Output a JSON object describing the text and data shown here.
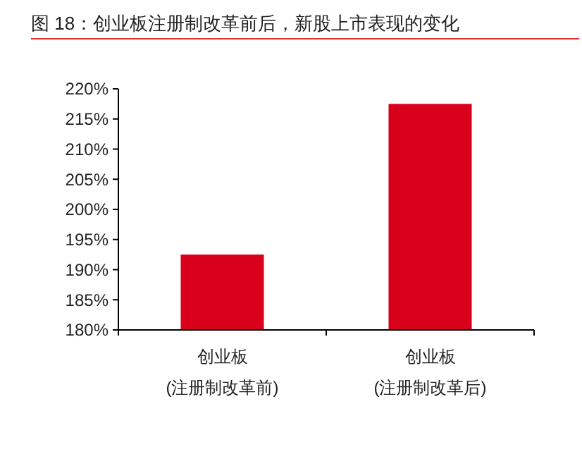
{
  "chart_data": {
    "type": "bar",
    "title": "图 18：创业板注册制改革前后，新股上市表现的变化",
    "categories": [
      "创业板\n(注册制改革前)",
      "创业板\n(注册制改革后)"
    ],
    "values": [
      192.5,
      217.5
    ],
    "color": "#d9001b",
    "ylim": [
      180,
      220
    ],
    "yticks": [
      {
        "value": 180,
        "label": "180%"
      },
      {
        "value": 185,
        "label": "185%"
      },
      {
        "value": 190,
        "label": "190%"
      },
      {
        "value": 195,
        "label": "195%"
      },
      {
        "value": 200,
        "label": "200%"
      },
      {
        "value": 205,
        "label": "205%"
      },
      {
        "value": 210,
        "label": "210%"
      },
      {
        "value": 215,
        "label": "215%"
      },
      {
        "value": 220,
        "label": "220%"
      }
    ],
    "grid": false
  }
}
